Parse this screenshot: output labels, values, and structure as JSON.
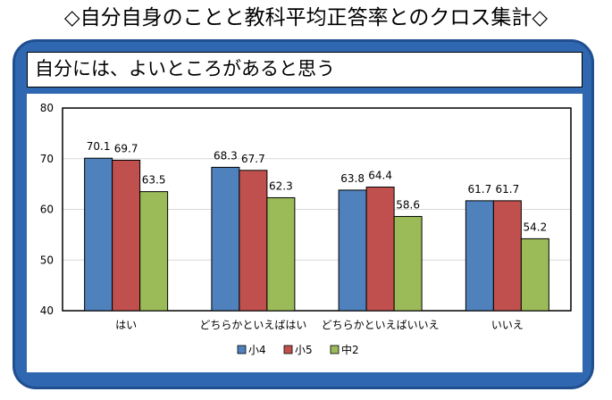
{
  "page_title": "◇自分自身のことと教科平均正答率とのクロス集計◇",
  "subtitle": "自分には、よいところがあると思う",
  "chart_data": {
    "type": "bar",
    "categories": [
      "はい",
      "どちらかといえばはい",
      "どちらかといえばいいえ",
      "いいえ"
    ],
    "series": [
      {
        "name": "小4",
        "color": "#4f81bd",
        "values": [
          70.1,
          68.3,
          63.8,
          61.7
        ]
      },
      {
        "name": "小5",
        "color": "#c0504d",
        "values": [
          69.7,
          67.7,
          64.4,
          61.7
        ]
      },
      {
        "name": "中2",
        "color": "#9bbb59",
        "values": [
          63.5,
          62.3,
          58.6,
          54.2
        ]
      }
    ],
    "ylim": [
      40,
      80
    ],
    "yticks": [
      40,
      50,
      60,
      70,
      80
    ],
    "grid": true,
    "legend_position": "bottom"
  }
}
